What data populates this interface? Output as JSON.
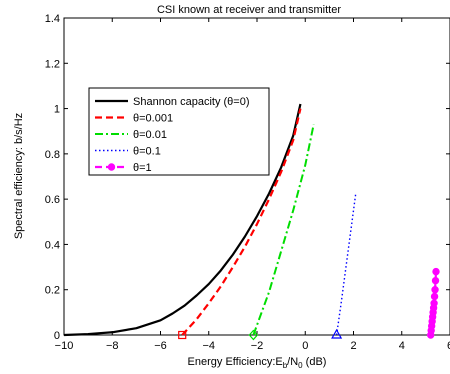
{
  "chart_data": {
    "type": "line",
    "title": "CSI known at receiver and transmitter",
    "xlabel": {
      "prefix": "Energy Efficiency:E",
      "sub1": "b",
      "mid": "/N",
      "sub2": "0",
      "suffix": " (dB)"
    },
    "ylabel": "Spectral efficiency: b/s/Hz",
    "xlim": [
      -10,
      6
    ],
    "ylim": [
      0,
      1.4
    ],
    "xticks": [
      -10,
      -8,
      -6,
      -4,
      -2,
      0,
      2,
      4,
      6
    ],
    "yticks": [
      0,
      0.2,
      0.4,
      0.6,
      0.8,
      1,
      1.2,
      1.4
    ],
    "xtick_labels": [
      "−10",
      "−8",
      "−6",
      "−4",
      "−2",
      "0",
      "2",
      "4",
      "6"
    ],
    "ytick_labels": [
      "0",
      "0.2",
      "0.4",
      "0.6",
      "0.8",
      "1",
      "1.2",
      "1.4"
    ],
    "grid": false,
    "legend_position": "upper-left",
    "series": [
      {
        "name": "Shannon capacity (θ=0)",
        "color": "#000000",
        "dash": "solid",
        "x": [
          -10,
          -9,
          -8,
          -7,
          -6,
          -5.5,
          -5,
          -4.5,
          -4,
          -3.5,
          -3,
          -2.5,
          -2,
          -1.5,
          -1,
          -0.5,
          -0.2
        ],
        "y": [
          0,
          0.004,
          0.012,
          0.03,
          0.065,
          0.095,
          0.13,
          0.175,
          0.225,
          0.285,
          0.355,
          0.435,
          0.525,
          0.625,
          0.74,
          0.88,
          1.02
        ]
      },
      {
        "name": "θ=0.001",
        "color": "#ff0000",
        "dash": "dashed",
        "marker": "square",
        "marker_x": -5.1,
        "marker_y": 0,
        "x": [
          -5.1,
          -4.5,
          -4,
          -3.5,
          -3,
          -2.5,
          -2,
          -1.5,
          -1,
          -0.5,
          -0.2
        ],
        "y": [
          0,
          0.07,
          0.14,
          0.215,
          0.3,
          0.39,
          0.49,
          0.6,
          0.72,
          0.86,
          1.0
        ]
      },
      {
        "name": "θ=0.01",
        "color": "#00dd00",
        "dash": "dashdot",
        "marker": "diamond",
        "marker_x": -2.15,
        "marker_y": 0,
        "x": [
          -2.15,
          -1.5,
          -1,
          -0.5,
          0,
          0.35
        ],
        "y": [
          0,
          0.19,
          0.37,
          0.55,
          0.75,
          0.93
        ]
      },
      {
        "name": "θ=0.1",
        "color": "#0000ff",
        "dash": "dotted",
        "marker": "triangle",
        "marker_x": 1.3,
        "marker_y": 0,
        "x": [
          1.3,
          1.5,
          1.7,
          1.9,
          2.1
        ],
        "y": [
          0,
          0.15,
          0.31,
          0.47,
          0.63
        ]
      },
      {
        "name": "θ=1",
        "color": "#ff00ff",
        "dash": "dashed",
        "marker": "circle",
        "x": [
          5.2,
          5.22,
          5.24,
          5.26,
          5.28,
          5.3,
          5.32,
          5.34,
          5.36,
          5.38,
          5.4,
          5.42
        ],
        "y": [
          0,
          0.02,
          0.04,
          0.06,
          0.08,
          0.1,
          0.12,
          0.14,
          0.17,
          0.2,
          0.24,
          0.28
        ]
      }
    ]
  }
}
